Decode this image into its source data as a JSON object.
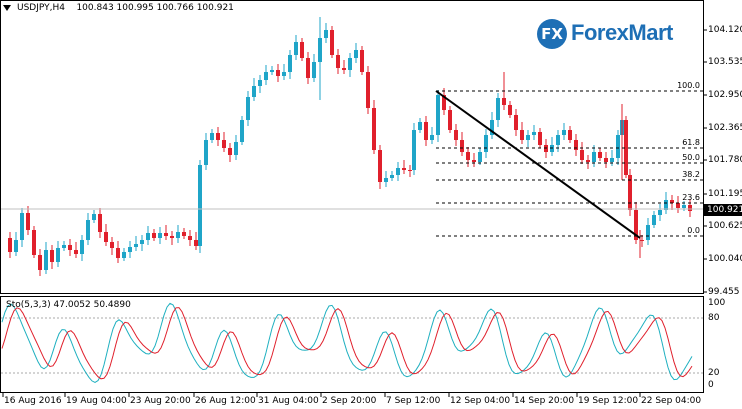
{
  "header": {
    "symbol": "USDJPY,H4",
    "ohlc": "100.843 100.995 100.766 100.921"
  },
  "logo": {
    "badge": "FX",
    "text": "ForexMart"
  },
  "price_axis": {
    "ticks": [
      "104.120",
      "103.535",
      "102.950",
      "102.365",
      "101.780",
      "101.195",
      "100.625",
      "100.040",
      "99.455"
    ],
    "current_price": "100.921"
  },
  "fibonacci": {
    "levels": [
      "100.0",
      "61.8",
      "50.0",
      "38.2",
      "23.6",
      "0.0"
    ]
  },
  "oscillator": {
    "title": "Sto(5,3,3) 47.0052 50.4890",
    "ticks": [
      "100",
      "80",
      "20",
      "0"
    ]
  },
  "time_axis": {
    "ticks": [
      "16 Aug 2016",
      "19 Aug 04:00",
      "23 Aug 20:00",
      "26 Aug 12:00",
      "31 Aug 04:00",
      "2 Sep 20:00",
      "7 Sep 12:00",
      "12 Sep 04:00",
      "14 Sep 20:00",
      "19 Sep 12:00",
      "22 Sep 04:00"
    ]
  },
  "colors": {
    "bull": "#1fa5c8",
    "bear": "#e0202c",
    "stoch_main": "#1fb0c0",
    "stoch_signal": "#e0202c",
    "logo": "#1e6fb5"
  }
}
